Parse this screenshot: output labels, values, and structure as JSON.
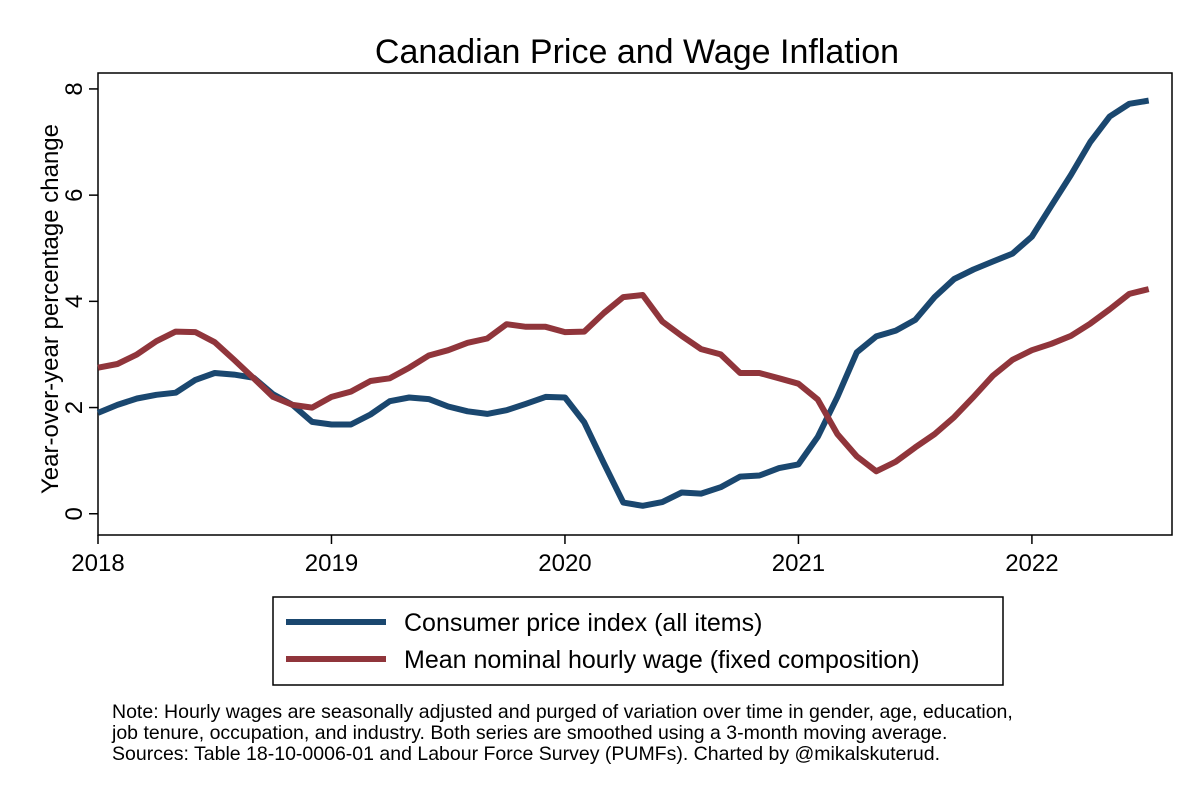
{
  "chart_data": {
    "type": "line",
    "title": "Canadian Price and Wage Inflation",
    "xlabel": "",
    "ylabel": "Year-over-year percentage change",
    "xlim": [
      2018,
      2022.6
    ],
    "ylim": [
      -0.4,
      8.3
    ],
    "xticks": [
      2018,
      2019,
      2020,
      2021,
      2022
    ],
    "xtick_labels": [
      "2018",
      "2019",
      "2020",
      "2021",
      "2022"
    ],
    "yticks": [
      0,
      2,
      4,
      6,
      8
    ],
    "ytick_labels": [
      "0",
      "2",
      "4",
      "6",
      "8"
    ],
    "grid": false,
    "legend_position": "bottom",
    "x": [
      2018.0,
      2018.083,
      2018.167,
      2018.25,
      2018.333,
      2018.417,
      2018.5,
      2018.583,
      2018.667,
      2018.75,
      2018.833,
      2018.917,
      2019.0,
      2019.083,
      2019.167,
      2019.25,
      2019.333,
      2019.417,
      2019.5,
      2019.583,
      2019.667,
      2019.75,
      2019.833,
      2019.917,
      2020.0,
      2020.083,
      2020.167,
      2020.25,
      2020.333,
      2020.417,
      2020.5,
      2020.583,
      2020.667,
      2020.75,
      2020.833,
      2020.917,
      2021.0,
      2021.083,
      2021.167,
      2021.25,
      2021.333,
      2021.417,
      2021.5,
      2021.583,
      2021.667,
      2021.75,
      2021.833,
      2021.917,
      2022.0,
      2022.083,
      2022.167,
      2022.25,
      2022.333,
      2022.417,
      2022.5
    ],
    "series": [
      {
        "name": "Consumer price index (all items)",
        "color": "#1a476f",
        "values": [
          1.9,
          2.05,
          2.17,
          2.24,
          2.28,
          2.52,
          2.65,
          2.62,
          2.56,
          2.25,
          2.05,
          1.73,
          1.68,
          1.68,
          1.87,
          2.12,
          2.19,
          2.16,
          2.02,
          1.93,
          1.88,
          1.95,
          2.07,
          2.2,
          2.19,
          1.72,
          0.95,
          0.21,
          0.15,
          0.22,
          0.4,
          0.38,
          0.5,
          0.7,
          0.72,
          0.86,
          0.93,
          1.45,
          2.2,
          3.04,
          3.34,
          3.45,
          3.65,
          4.08,
          4.42,
          4.6,
          4.75,
          4.9,
          5.22,
          5.8,
          6.38,
          7.0,
          7.48,
          7.72,
          7.78
        ]
      },
      {
        "name": "Mean nominal hourly wage (fixed composition)",
        "color": "#90353b",
        "values": [
          2.75,
          2.82,
          3.0,
          3.25,
          3.43,
          3.42,
          3.23,
          2.9,
          2.55,
          2.2,
          2.05,
          2.0,
          2.2,
          2.3,
          2.5,
          2.55,
          2.75,
          2.98,
          3.08,
          3.22,
          3.3,
          3.57,
          3.52,
          3.52,
          3.42,
          3.43,
          3.78,
          4.08,
          4.12,
          3.62,
          3.35,
          3.1,
          3.0,
          2.65,
          2.65,
          2.55,
          2.45,
          2.15,
          1.5,
          1.08,
          0.8,
          0.98,
          1.25,
          1.5,
          1.82,
          2.2,
          2.6,
          2.9,
          3.08,
          3.2,
          3.35,
          3.58,
          3.85,
          4.14,
          4.23
        ]
      }
    ]
  },
  "note": {
    "line1": "Note: Hourly wages are seasonally adjusted and purged of variation over time in gender, age, education,",
    "line2": "job tenure, occupation, and industry. Both series are smoothed using a 3-month moving average.",
    "line3": "Sources: Table 18-10-0006-01 and Labour Force Survey (PUMFs). Charted by @mikalskuterud."
  }
}
